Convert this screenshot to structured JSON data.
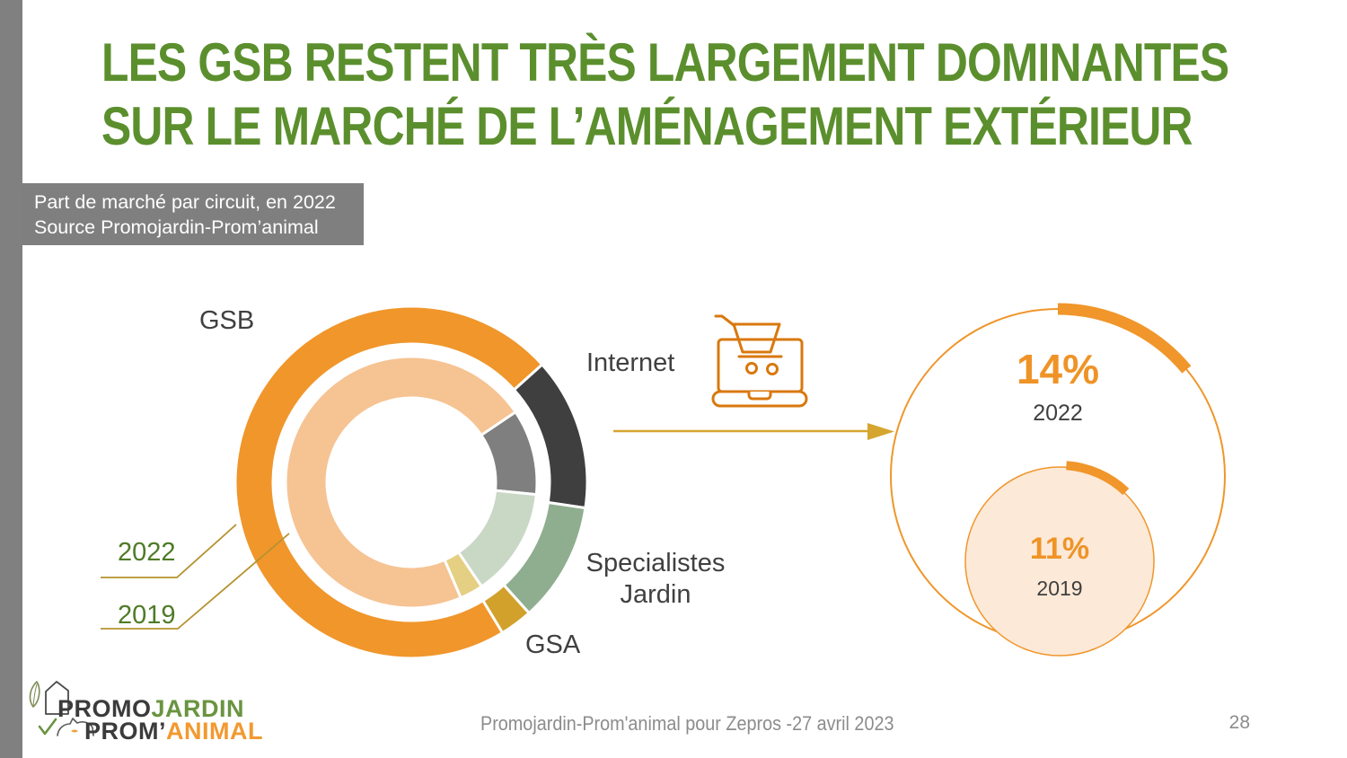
{
  "title": {
    "line1": "LES GSB RESTENT TRÈS LARGEMENT DOMINANTES",
    "line2": "SUR LE MARCHÉ DE L’AMÉNAGEMENT EXTÉRIEUR",
    "color": "#5B8F2D"
  },
  "info_box": {
    "line1": "Part de marché par circuit, en 2022",
    "line2": "Source Promojardin-Prom’animal",
    "bg_color": "#7F7F7F"
  },
  "donut_labels": {
    "gsb": "GSB",
    "internet": "Internet",
    "specialistes_line1": "Specialistes",
    "specialistes_line2": "Jardin",
    "gsa": "GSA"
  },
  "chart_data": [
    {
      "type": "donut",
      "title": "Part de marché par circuit, en 2022 (anneau extérieur) vs 2019 (anneau intérieur)",
      "units": "%",
      "categories": [
        "GSB",
        "Internet",
        "Specialistes Jardin",
        "GSA"
      ],
      "series": [
        {
          "name": "2022",
          "values": [
            72,
            14,
            11,
            3
          ]
        },
        {
          "name": "2019",
          "values": [
            72,
            11,
            14,
            3
          ]
        }
      ],
      "legend_position": "left-leader-lines",
      "rings": [
        {
          "name": "2022",
          "mid_radius": 175,
          "thickness": 42,
          "start_angle_deg": 48,
          "segments": [
            {
              "label": "Internet",
              "value": 14,
              "color": "#3F3F3F"
            },
            {
              "label": "Specialistes Jardin",
              "value": 11,
              "color": "#8FAE8F"
            },
            {
              "label": "GSA",
              "value": 3,
              "color": "#D2A12C"
            },
            {
              "label": "GSB",
              "value": 72,
              "color": "#F0962B"
            }
          ]
        },
        {
          "name": "2019",
          "mid_radius": 117,
          "thickness": 46,
          "start_angle_deg": 56,
          "segments": [
            {
              "label": "Internet",
              "value": 11,
              "color": "#7F7F7F"
            },
            {
              "label": "Specialistes Jardin",
              "value": 14,
              "color": "#C8D8C5"
            },
            {
              "label": "GSA",
              "value": 3,
              "color": "#E4CF82"
            },
            {
              "label": "GSB",
              "value": 72,
              "color": "#F6C393"
            }
          ]
        }
      ]
    },
    {
      "type": "circle-comparison",
      "title": "Internet",
      "units": "%",
      "accent_color": "#F0962B",
      "small_fill_color": "#FCE9D8",
      "points": [
        {
          "year": "2022",
          "value_pct": 14,
          "label": "14%",
          "arc_start_deg": 0
        },
        {
          "year": "2019",
          "value_pct": 11,
          "label": "11%",
          "arc_start_deg": 4
        }
      ]
    }
  ],
  "logo": {
    "part1": "PROMO",
    "part2": "JARDIN",
    "part3": "PROM’",
    "part4": "ANIMAL",
    "green": "#6A9440",
    "orange": "#F2992F"
  },
  "footer": {
    "credit": "Promojardin-Prom'animal pour Zepros -27 avril 2023",
    "page": "28"
  }
}
